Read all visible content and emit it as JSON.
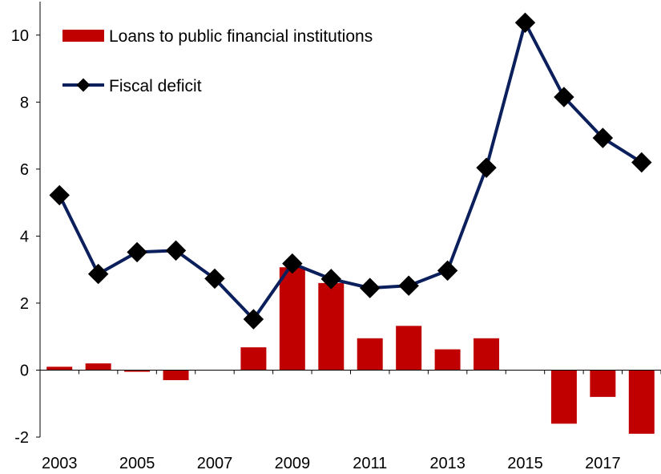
{
  "chart_data": {
    "type": "bar+line",
    "title": "",
    "xlabel": "",
    "ylabel": "",
    "x": [
      2003,
      2004,
      2005,
      2006,
      2007,
      2008,
      2009,
      2010,
      2011,
      2012,
      2013,
      2014,
      2015,
      2016,
      2017,
      2018
    ],
    "x_tick_labels": [
      "2003",
      "2005",
      "2007",
      "2009",
      "2011",
      "2013",
      "2015",
      "2017"
    ],
    "ylim": [
      -2,
      11
    ],
    "y_ticks": [
      -2,
      0,
      2,
      4,
      6,
      8,
      10
    ],
    "grid": false,
    "legend_position": "top-left",
    "series": [
      {
        "name": "Loans to public financial institutions",
        "type": "bar",
        "color": "#c00000",
        "values": [
          0.1,
          0.2,
          -0.05,
          -0.3,
          0.0,
          0.68,
          3.07,
          2.6,
          0.95,
          1.32,
          0.62,
          0.95,
          0.0,
          -1.6,
          -0.8,
          -1.9
        ]
      },
      {
        "name": "Fiscal deficit",
        "type": "line",
        "color": "#0a1f5c",
        "marker_color": "#000000",
        "values": [
          5.22,
          2.87,
          3.52,
          3.57,
          2.73,
          1.52,
          3.18,
          2.72,
          2.45,
          2.52,
          2.97,
          6.04,
          10.37,
          8.15,
          6.93,
          6.2
        ]
      }
    ]
  }
}
